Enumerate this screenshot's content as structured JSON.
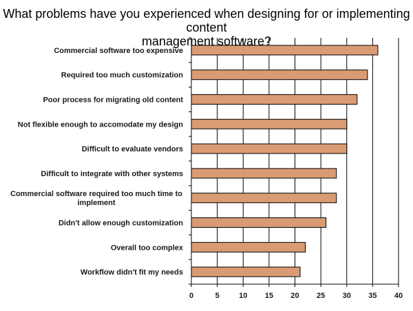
{
  "chart_data": {
    "type": "bar",
    "orientation": "horizontal",
    "title_lines": [
      "What problems have you experienced when designing for or implementing content",
      "management software?"
    ],
    "categories": [
      [
        "Commercial software too expensive"
      ],
      [
        "Required too much customization"
      ],
      [
        "Poor process for migrating old content"
      ],
      [
        "Not flexible enough to accomodate my design"
      ],
      [
        "Difficult to evaluate vendors"
      ],
      [
        "Difficult to integrate with other systems"
      ],
      [
        "Commercial software required too much time to",
        "implement"
      ],
      [
        "Didn't allow enough customization"
      ],
      [
        "Overall too complex"
      ],
      [
        "Workflow didn't fit my needs"
      ]
    ],
    "values": [
      36,
      34,
      32,
      30,
      30,
      28,
      28,
      26,
      22,
      21
    ],
    "xlim": [
      0,
      40
    ],
    "ticks": [
      0,
      5,
      10,
      15,
      20,
      25,
      30,
      35,
      40
    ],
    "grid": "vertical",
    "bar_color": "#d99b73",
    "bar_edge_color": "#000000",
    "grid_color": "#000000"
  }
}
